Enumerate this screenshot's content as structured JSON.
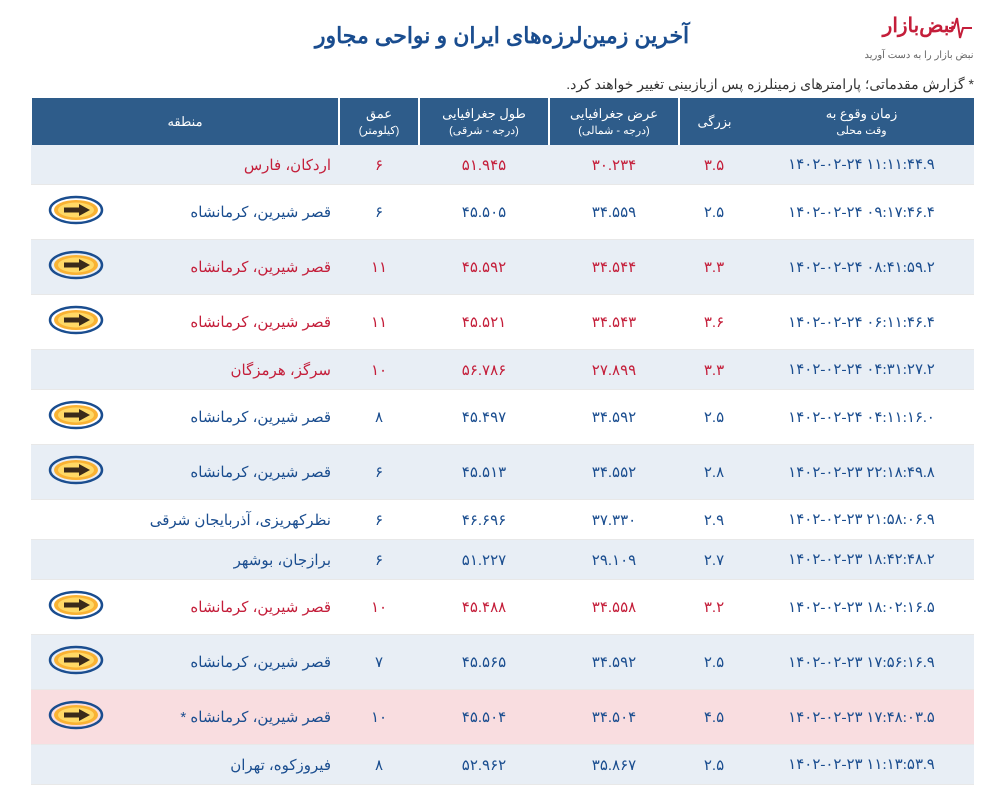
{
  "title": "آخرین زمین‌لرزه‌های ایران و نواحی مجاور",
  "logo": {
    "main": "نبض‌بازار",
    "sub": "نبض بازار را به دست آورید"
  },
  "note": "* گزارش مقدماتی؛ پارامترهای زمینلرزه پس ازبازبینی تغییر خواهند کرد.",
  "headers": {
    "time": "زمان وقوع به",
    "time_sub": "وقت محلی",
    "mag": "بزرگی",
    "lat": "عرض جغرافیایی",
    "lat_sub": "(درجه - شمالی)",
    "lon": "طول جغرافیایی",
    "lon_sub": "(درجه - شرقی)",
    "depth": "عمق",
    "depth_sub": "(کیلومتر)",
    "region": "منطقه"
  },
  "colors": {
    "header_bg": "#2e5c8a",
    "header_text": "#ffffff",
    "row_even": "#e8eef5",
    "row_odd": "#ffffff",
    "row_hl": "#f9dde0",
    "text_blue": "#1a4d8f",
    "text_red": "#c41e3a",
    "arrow_ring": "#1a4d8f",
    "arrow_fill_outer": "#f9b233",
    "arrow_fill_inner": "#ffd966",
    "arrow_body": "#3a2a1a"
  },
  "rows": [
    {
      "time": "۱۴۰۲-۰۲-۲۴ ۱۱:۱۱:۴۴.۹",
      "mag": "۳.۵",
      "lat": "۳۰.۲۳۴",
      "lon": "۵۱.۹۴۵",
      "depth": "۶",
      "region": "اردکان، فارس",
      "icon": false,
      "red": true,
      "rowcls": "even"
    },
    {
      "time": "۱۴۰۲-۰۲-۲۴ ۰۹:۱۷:۴۶.۴",
      "mag": "۲.۵",
      "lat": "۳۴.۵۵۹",
      "lon": "۴۵.۵۰۵",
      "depth": "۶",
      "region": "قصر شیرین، کرمانشاه",
      "icon": true,
      "red": false,
      "rowcls": "odd"
    },
    {
      "time": "۱۴۰۲-۰۲-۲۴ ۰۸:۴۱:۵۹.۲",
      "mag": "۳.۳",
      "lat": "۳۴.۵۴۴",
      "lon": "۴۵.۵۹۲",
      "depth": "۱۱",
      "region": "قصر شیرین، کرمانشاه",
      "icon": true,
      "red": true,
      "rowcls": "even"
    },
    {
      "time": "۱۴۰۲-۰۲-۲۴ ۰۶:۱۱:۴۶.۴",
      "mag": "۳.۶",
      "lat": "۳۴.۵۴۳",
      "lon": "۴۵.۵۲۱",
      "depth": "۱۱",
      "region": "قصر شیرین، کرمانشاه",
      "icon": true,
      "red": true,
      "rowcls": "odd"
    },
    {
      "time": "۱۴۰۲-۰۲-۲۴ ۰۴:۳۱:۲۷.۲",
      "mag": "۳.۳",
      "lat": "۲۷.۸۹۹",
      "lon": "۵۶.۷۸۶",
      "depth": "۱۰",
      "region": "سرگز، هرمزگان",
      "icon": false,
      "red": true,
      "rowcls": "even"
    },
    {
      "time": "۱۴۰۲-۰۲-۲۴ ۰۴:۱۱:۱۶.۰",
      "mag": "۲.۵",
      "lat": "۳۴.۵۹۲",
      "lon": "۴۵.۴۹۷",
      "depth": "۸",
      "region": "قصر شیرین، کرمانشاه",
      "icon": true,
      "red": false,
      "rowcls": "odd"
    },
    {
      "time": "۱۴۰۲-۰۲-۲۳ ۲۲:۱۸:۴۹.۸",
      "mag": "۲.۸",
      "lat": "۳۴.۵۵۲",
      "lon": "۴۵.۵۱۳",
      "depth": "۶",
      "region": "قصر شیرین، کرمانشاه",
      "icon": true,
      "red": false,
      "rowcls": "even"
    },
    {
      "time": "۱۴۰۲-۰۲-۲۳ ۲۱:۵۸:۰۶.۹",
      "mag": "۲.۹",
      "lat": "۳۷.۳۳۰",
      "lon": "۴۶.۶۹۶",
      "depth": "۶",
      "region": "نظرکهریزی، آذربایجان شرقی",
      "icon": false,
      "red": false,
      "rowcls": "odd"
    },
    {
      "time": "۱۴۰۲-۰۲-۲۳ ۱۸:۴۲:۴۸.۲",
      "mag": "۲.۷",
      "lat": "۲۹.۱۰۹",
      "lon": "۵۱.۲۲۷",
      "depth": "۶",
      "region": "برازجان، بوشهر",
      "icon": false,
      "red": false,
      "rowcls": "even"
    },
    {
      "time": "۱۴۰۲-۰۲-۲۳ ۱۸:۰۲:۱۶.۵",
      "mag": "۳.۲",
      "lat": "۳۴.۵۵۸",
      "lon": "۴۵.۴۸۸",
      "depth": "۱۰",
      "region": "قصر شیرین، کرمانشاه",
      "icon": true,
      "red": true,
      "rowcls": "odd"
    },
    {
      "time": "۱۴۰۲-۰۲-۲۳ ۱۷:۵۶:۱۶.۹",
      "mag": "۲.۵",
      "lat": "۳۴.۵۹۲",
      "lon": "۴۵.۵۶۵",
      "depth": "۷",
      "region": "قصر شیرین، کرمانشاه",
      "icon": true,
      "red": false,
      "rowcls": "even"
    },
    {
      "time": "۱۴۰۲-۰۲-۲۳ ۱۷:۴۸:۰۳.۵",
      "mag": "۴.۵",
      "lat": "۳۴.۵۰۴",
      "lon": "۴۵.۵۰۴",
      "depth": "۱۰",
      "region": "قصر شیرین، کرمانشاه *",
      "icon": true,
      "red": false,
      "rowcls": "hl"
    },
    {
      "time": "۱۴۰۲-۰۲-۲۳ ۱۱:۱۳:۵۳.۹",
      "mag": "۲.۵",
      "lat": "۳۵.۸۶۷",
      "lon": "۵۲.۹۶۲",
      "depth": "۸",
      "region": "فیروزکوه، تهران",
      "icon": false,
      "red": false,
      "rowcls": "even"
    }
  ]
}
